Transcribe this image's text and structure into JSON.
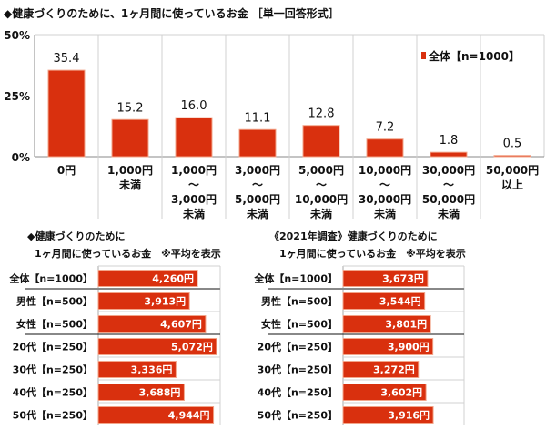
{
  "colors": {
    "bar": "#d9300e",
    "bar_edge": "#f2a58a",
    "grid": "#d0d0d0"
  },
  "chart_data": [
    {
      "type": "bar",
      "title": "◆健康づくりのために、1ヶ月間に使っているお金 ［単一回答形式］",
      "categories": [
        "0円",
        "1,000円\n未満",
        "1,000円\n～\n3,000円\n未満",
        "3,000円\n～\n5,000円\n未満",
        "5,000円\n～\n10,000円\n未満",
        "10,000円\n～\n30,000円\n未満",
        "30,000円\n～\n50,000円\n未満",
        "50,000円\n以上"
      ],
      "series": [
        {
          "name": "全体【n=1000】",
          "values": [
            35.4,
            15.2,
            16.0,
            11.1,
            12.8,
            7.2,
            1.8,
            0.5
          ]
        }
      ],
      "data_labels": [
        "35.4",
        "15.2",
        "16.0",
        "11.1",
        "12.8",
        "7.2",
        "1.8",
        "0.5"
      ],
      "yticks": [
        "0%",
        "25%",
        "50%"
      ],
      "ylim": [
        0,
        50
      ],
      "legend": "top-right",
      "grid": false
    },
    {
      "type": "bar",
      "orientation": "horizontal",
      "title": [
        "◆健康づくりのために",
        "1ヶ月間に使っているお金　※平均を表示"
      ],
      "categories": [
        "全体【n=1000】",
        "男性【n=500】",
        "女性【n=500】",
        "20代【n=250】",
        "30代【n=250】",
        "40代【n=250】",
        "50代【n=250】"
      ],
      "values": [
        4260,
        3913,
        4607,
        5072,
        3336,
        3688,
        4944
      ],
      "data_labels": [
        "4,260円",
        "3,913円",
        "4,607円",
        "5,072円",
        "3,336円",
        "3,688円",
        "4,944円"
      ]
    },
    {
      "type": "bar",
      "orientation": "horizontal",
      "title": [
        "《2021年調査》健康づくりのために",
        "1ヶ月間に使っているお金　※平均を表示"
      ],
      "categories": [
        "全体【n=1000】",
        "男性【n=500】",
        "女性【n=500】",
        "20代【n=250】",
        "30代【n=250】",
        "40代【n=250】",
        "50代【n=250】"
      ],
      "values": [
        3673,
        3544,
        3801,
        3900,
        3272,
        3602,
        3916
      ],
      "data_labels": [
        "3,673円",
        "3,544円",
        "3,801円",
        "3,900円",
        "3,272円",
        "3,602円",
        "3,916円"
      ]
    }
  ]
}
